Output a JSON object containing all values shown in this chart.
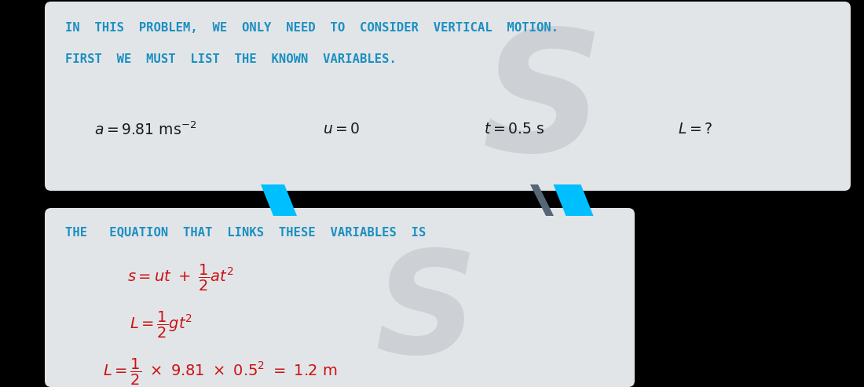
{
  "bg_color": "#000000",
  "box1_color": "#e2e5e8",
  "box2_color": "#e2e5e8",
  "blue_color": "#1a8fc1",
  "red_color": "#cc1111",
  "dark_color": "#1a1a1a",
  "cyan_arrow": "#00bfff",
  "slash_color": "#556677",
  "box1_text_line1": "IN  THIS  PROBLEM,  WE  ONLY  NEED  TO  CONSIDER  VERTICAL  MOTION.",
  "box1_text_line2": "FIRST  WE  MUST  LIST  THE  KNOWN  VARIABLES.",
  "box2_heading": "THE   EQUATION  THAT  LINKS  THESE  VARIABLES  IS",
  "watermark_color": "#cdd0d4",
  "fig_width": 11.0,
  "fig_height": 4.93
}
